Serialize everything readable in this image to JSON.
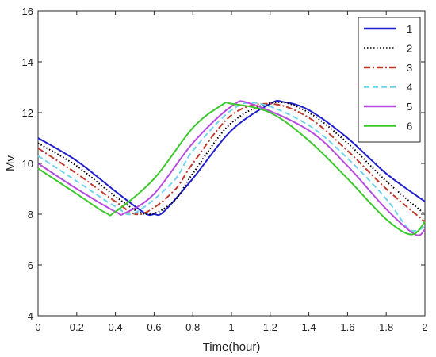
{
  "chart_data": {
    "type": "line",
    "title": "",
    "xlabel": "Time(hour)",
    "ylabel": "Mv",
    "xlim": [
      0,
      2
    ],
    "ylim": [
      4,
      16
    ],
    "xticks": [
      "0",
      "0.2",
      "0.4",
      "0.6",
      "0.8",
      "1",
      "1.2",
      "1.4",
      "1.6",
      "1.8",
      "2"
    ],
    "yticks": [
      "4",
      "6",
      "8",
      "10",
      "12",
      "14",
      "16"
    ],
    "grid": false,
    "legend_position": "top-right",
    "series": [
      {
        "name": "1",
        "color": "#1f1fcf",
        "dash": "solid",
        "x": [
          0,
          0.2,
          0.4,
          0.55,
          0.6,
          0.65,
          0.8,
          1.0,
          1.2,
          1.27,
          1.4,
          1.6,
          1.8,
          2.0
        ],
        "y": [
          11.0,
          10.1,
          8.9,
          8.05,
          8.0,
          8.1,
          9.4,
          11.3,
          12.35,
          12.42,
          12.1,
          11.0,
          9.6,
          8.5
        ]
      },
      {
        "name": "2",
        "color": "#000000",
        "dash": "dotted",
        "x": [
          0,
          0.2,
          0.4,
          0.56,
          0.7,
          0.8,
          1.0,
          1.22,
          1.4,
          1.6,
          1.8,
          2.0
        ],
        "y": [
          10.8,
          9.9,
          8.7,
          8.0,
          8.5,
          9.6,
          11.6,
          12.4,
          12.0,
          10.8,
          9.3,
          8.0
        ]
      },
      {
        "name": "3",
        "color": "#c0392b",
        "dash": "dashdot",
        "x": [
          0,
          0.2,
          0.4,
          0.53,
          0.7,
          0.8,
          1.0,
          1.2,
          1.4,
          1.6,
          1.8,
          2.0
        ],
        "y": [
          10.6,
          9.6,
          8.5,
          8.0,
          8.9,
          10.0,
          11.9,
          12.35,
          11.8,
          10.5,
          9.0,
          7.7
        ]
      },
      {
        "name": "4",
        "color": "#6fd3ec",
        "dash": "dashed",
        "x": [
          0,
          0.2,
          0.4,
          0.5,
          0.7,
          0.8,
          1.0,
          1.15,
          1.4,
          1.6,
          1.8,
          1.92,
          2.0
        ],
        "y": [
          10.3,
          9.3,
          8.3,
          8.05,
          9.3,
          10.5,
          12.1,
          12.35,
          11.5,
          10.2,
          8.6,
          7.4,
          7.5
        ]
      },
      {
        "name": "5",
        "color": "#b64be0",
        "dash": "solid",
        "x": [
          0,
          0.2,
          0.4,
          0.45,
          0.6,
          0.8,
          1.0,
          1.1,
          1.4,
          1.6,
          1.8,
          1.95,
          2.0
        ],
        "y": [
          10.0,
          9.0,
          8.1,
          8.05,
          8.8,
          10.8,
          12.25,
          12.35,
          11.3,
          9.9,
          8.2,
          7.2,
          7.4
        ]
      },
      {
        "name": "6",
        "color": "#3cc82d",
        "dash": "solid",
        "x": [
          0,
          0.2,
          0.35,
          0.4,
          0.6,
          0.8,
          0.95,
          1.0,
          1.2,
          1.4,
          1.6,
          1.8,
          1.93,
          2.0
        ],
        "y": [
          9.8,
          8.8,
          8.05,
          8.1,
          9.4,
          11.4,
          12.3,
          12.35,
          12.0,
          10.9,
          9.4,
          7.8,
          7.2,
          7.7
        ]
      }
    ]
  }
}
